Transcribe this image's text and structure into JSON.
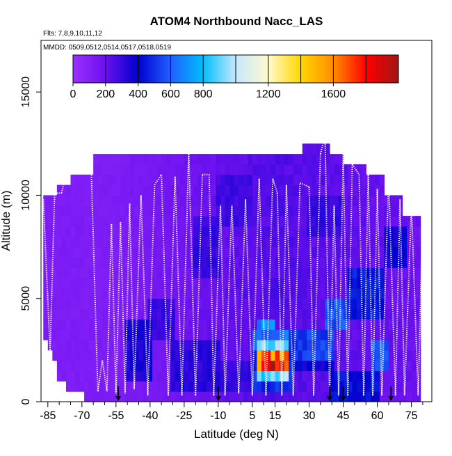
{
  "chart_data": {
    "type": "heatmap",
    "title": "ATOM4 Northbound Nacc_LAS",
    "flights_note": "Flts: 7,8,9,10,11,12",
    "dates_note": "MMDD: 0509,0512,0514,0517,0518,0519",
    "xlabel": "Latitude (deg N)",
    "ylabel": "Altitude (m)",
    "xlim": [
      -88,
      84
    ],
    "ylim": [
      0,
      17500
    ],
    "x_ticks": [
      -85,
      -70,
      -55,
      -40,
      -25,
      -10,
      5,
      15,
      30,
      45,
      60,
      75
    ],
    "x_minor_ticks": [
      -80,
      -75,
      -65,
      -60,
      -50,
      -45,
      -35,
      -30,
      -20,
      -15,
      -5,
      0,
      10,
      20,
      25,
      35,
      40,
      50,
      55,
      65,
      70,
      80
    ],
    "y_ticks": [
      0,
      5000,
      10000,
      15000
    ],
    "colorbar": {
      "range": [
        0,
        2000
      ],
      "tick_values": [
        0,
        200,
        400,
        600,
        800,
        1200,
        1600
      ],
      "tick_labels": [
        "0",
        "200",
        "400",
        "600",
        "800",
        "1200",
        "1600"
      ],
      "divisions": [
        200,
        400,
        600,
        800,
        1000,
        1200,
        1400,
        1600,
        1800
      ],
      "colors": [
        "#9b30ff",
        "#6a10ee",
        "#0000cd",
        "#1f60ff",
        "#00bfff",
        "#c6e8ff",
        "#fffacd",
        "#ffd700",
        "#ff8c00",
        "#ff0000",
        "#a01616"
      ]
    },
    "ceiling_profile": [
      [
        -87,
        10000
      ],
      [
        -80,
        10000
      ],
      [
        -80,
        10400
      ],
      [
        -75,
        10400
      ],
      [
        -75,
        11000
      ],
      [
        -65,
        11300
      ],
      [
        -65,
        11600
      ],
      [
        -35,
        11600
      ],
      [
        -35,
        12000
      ],
      [
        -13,
        12000
      ],
      [
        -13,
        11600
      ],
      [
        15,
        11600
      ],
      [
        15,
        12000
      ],
      [
        28,
        12000
      ],
      [
        28,
        12500
      ],
      [
        39,
        12500
      ],
      [
        39,
        12000
      ],
      [
        46,
        12000
      ],
      [
        46,
        11400
      ],
      [
        55,
        11400
      ],
      [
        55,
        11000
      ],
      [
        63,
        11000
      ],
      [
        63,
        10000
      ],
      [
        72,
        10000
      ],
      [
        72,
        8800
      ],
      [
        80,
        8800
      ],
      [
        80,
        0
      ]
    ],
    "floor_profile": [
      [
        -87,
        3500
      ],
      [
        -85,
        3000
      ],
      [
        -84,
        2500
      ],
      [
        -82,
        2000
      ],
      [
        -80,
        1300
      ],
      [
        -78,
        1000
      ],
      [
        -75,
        800
      ],
      [
        -70,
        600
      ],
      [
        -67,
        300
      ],
      [
        -65,
        0
      ]
    ],
    "background_value": 120,
    "concentration_patches": [
      {
        "lat": [
          -50,
          -40
        ],
        "alt": [
          1000,
          4000
        ],
        "value": 350
      },
      {
        "lat": [
          -40,
          -30
        ],
        "alt": [
          3000,
          5000
        ],
        "value": 300
      },
      {
        "lat": [
          -30,
          -10
        ],
        "alt": [
          500,
          3000
        ],
        "value": 320
      },
      {
        "lat": [
          -20,
          -10
        ],
        "alt": [
          6000,
          9000
        ],
        "value": 300
      },
      {
        "lat": [
          -10,
          5
        ],
        "alt": [
          500,
          2000
        ],
        "value": 300
      },
      {
        "lat": [
          5,
          22
        ],
        "alt": [
          500,
          2500
        ],
        "value": 500
      },
      {
        "lat": [
          5,
          20
        ],
        "alt": [
          2500,
          3400
        ],
        "value": 620
      },
      {
        "lat": [
          8,
          14
        ],
        "alt": [
          3400,
          4000
        ],
        "value": 680
      },
      {
        "lat": [
          8,
          20
        ],
        "alt": [
          900,
          3000
        ],
        "value": 900
      },
      {
        "lat": [
          8,
          20
        ],
        "alt": [
          1400,
          2500
        ],
        "value": 1300
      },
      {
        "lat": [
          8,
          20
        ],
        "alt": [
          1600,
          2300
        ],
        "value": 1650
      },
      {
        "lat": [
          11,
          18
        ],
        "alt": [
          1400,
          2100
        ],
        "value": 1850
      },
      {
        "lat": [
          22,
          40
        ],
        "alt": [
          2200,
          3500
        ],
        "value": 520
      },
      {
        "lat": [
          22,
          40
        ],
        "alt": [
          1500,
          2200
        ],
        "value": 380
      },
      {
        "lat": [
          38,
          46
        ],
        "alt": [
          3500,
          5000
        ],
        "value": 560
      },
      {
        "lat": [
          48,
          62
        ],
        "alt": [
          4000,
          6500
        ],
        "value": 450
      },
      {
        "lat": [
          58,
          64
        ],
        "alt": [
          1500,
          3000
        ],
        "value": 550
      },
      {
        "lat": [
          64,
          72
        ],
        "alt": [
          6500,
          8500
        ],
        "value": 380
      },
      {
        "lat": [
          40,
          60
        ],
        "alt": [
          0,
          1500
        ],
        "value": 420
      },
      {
        "lat": [
          30,
          45
        ],
        "alt": [
          8000,
          10000
        ],
        "value": 300
      },
      {
        "lat": [
          -10,
          5
        ],
        "alt": [
          8500,
          11000
        ],
        "value": 280
      }
    ],
    "flight_profiles": [
      [
        -87,
        9800
      ],
      [
        -84,
        2400
      ],
      [
        -82,
        10100
      ],
      [
        -79,
        10100
      ],
      [
        -77,
        11000
      ],
      [
        -72,
        11300
      ],
      [
        -66,
        11600
      ],
      [
        -63,
        500
      ],
      [
        -61,
        2000
      ],
      [
        -59,
        500
      ],
      [
        -57,
        8600
      ],
      [
        -55,
        400
      ],
      [
        -53,
        8700
      ],
      [
        -51,
        400
      ],
      [
        -49,
        9600
      ],
      [
        -47,
        600
      ],
      [
        -44,
        10000
      ],
      [
        -41,
        300
      ],
      [
        -38,
        10500
      ],
      [
        -35,
        11000
      ],
      [
        -32,
        300
      ],
      [
        -29,
        10900
      ],
      [
        -26,
        300
      ],
      [
        -23,
        12100
      ],
      [
        -20,
        300
      ],
      [
        -17,
        11000
      ],
      [
        -14,
        11000
      ],
      [
        -12,
        300
      ],
      [
        -9,
        9500
      ],
      [
        -7,
        300
      ],
      [
        -4,
        9500
      ],
      [
        -1,
        400
      ],
      [
        2,
        9800
      ],
      [
        5,
        300
      ],
      [
        8,
        10800
      ],
      [
        11,
        300
      ],
      [
        14,
        10800
      ],
      [
        16,
        10100
      ],
      [
        18,
        300
      ],
      [
        20,
        10500
      ],
      [
        23,
        300
      ],
      [
        26,
        10600
      ],
      [
        30,
        10400
      ],
      [
        32,
        300
      ],
      [
        35,
        12000
      ],
      [
        37,
        12900
      ],
      [
        39,
        300
      ],
      [
        41,
        9500
      ],
      [
        43,
        300
      ],
      [
        45,
        12000
      ],
      [
        47,
        300
      ],
      [
        49,
        11500
      ],
      [
        52,
        11000
      ],
      [
        54,
        300
      ],
      [
        56,
        11000
      ],
      [
        58,
        300
      ],
      [
        60,
        10300
      ],
      [
        62,
        300
      ],
      [
        65,
        10800
      ],
      [
        68,
        300
      ],
      [
        70,
        9800
      ],
      [
        72,
        300
      ],
      [
        75,
        9500
      ],
      [
        78,
        300
      ],
      [
        80,
        9200
      ],
      [
        82,
        300
      ]
    ],
    "arrow_markers_lat": [
      -54,
      -10,
      39,
      45,
      66
    ]
  }
}
